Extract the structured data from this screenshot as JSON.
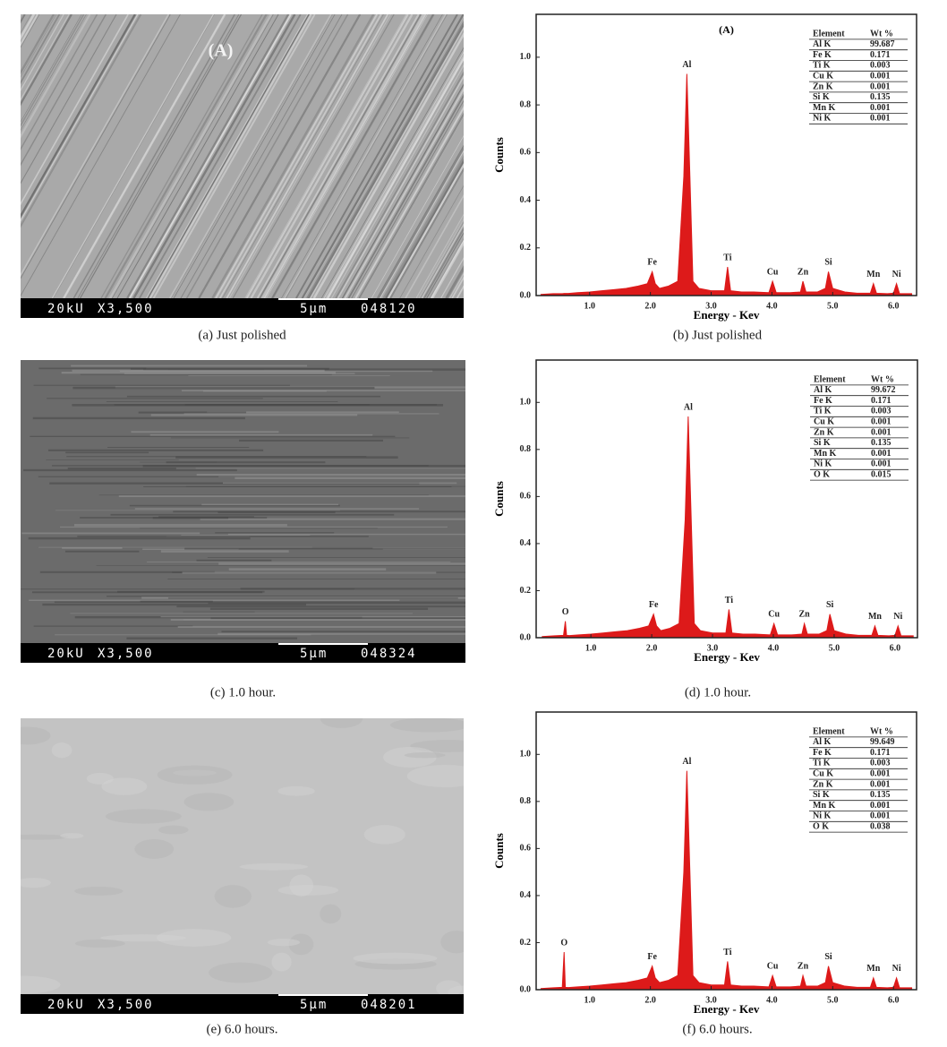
{
  "images": [
    {
      "label": "(A)",
      "info": [
        "20kU",
        "X3,500",
        "5μm",
        "048120"
      ],
      "caption": "(a) Just polished"
    },
    {
      "info": [
        "20kU",
        "X3,500",
        "5μm",
        "048324"
      ],
      "caption": "(c) 1.0 hour."
    },
    {
      "info": [
        "20kU",
        "X3,500",
        "5μm",
        "048201"
      ],
      "caption": "(e) 6.0 hours."
    }
  ],
  "chart_data": [
    {
      "type": "area",
      "title": "(A)",
      "caption": "(b) Just polished",
      "x_label": "Energy - Kev",
      "y_label": "Counts",
      "color": "#dd1a1a",
      "xlim": [
        0.12,
        6.38
      ],
      "ylim": [
        0,
        1.18
      ],
      "xticks": [
        {
          "value": 1,
          "label": "1.0"
        },
        {
          "value": 2,
          "label": "2.0"
        },
        {
          "value": 3,
          "label": "3.0"
        },
        {
          "value": 4,
          "label": "4.0"
        },
        {
          "value": 5,
          "label": "5.0"
        },
        {
          "value": 6,
          "label": "6.0"
        }
      ],
      "yticks": [
        {
          "value": 0,
          "label": "0.0"
        },
        0.2,
        0.4,
        0.6,
        0.8,
        {
          "value": 1,
          "label": "1.0"
        }
      ],
      "x": [
        0.2,
        0.4,
        0.55,
        0.58,
        0.6,
        0.65,
        0.8,
        1.0,
        1.2,
        1.4,
        1.6,
        1.8,
        1.95,
        2.03,
        2.08,
        2.15,
        2.3,
        2.45,
        2.55,
        2.6,
        2.65,
        2.7,
        2.8,
        3.0,
        3.22,
        3.27,
        3.32,
        3.5,
        3.7,
        3.95,
        4.01,
        4.07,
        4.3,
        4.47,
        4.51,
        4.56,
        4.75,
        4.88,
        4.93,
        5.0,
        5.2,
        5.4,
        5.62,
        5.67,
        5.72,
        5.9,
        6.0,
        6.05,
        6.1,
        6.3
      ],
      "values": [
        0.005,
        0.008,
        0.008,
        0.009,
        0.009,
        0.009,
        0.012,
        0.015,
        0.02,
        0.025,
        0.03,
        0.04,
        0.05,
        0.1,
        0.05,
        0.03,
        0.04,
        0.06,
        0.5,
        0.93,
        0.5,
        0.06,
        0.03,
        0.02,
        0.02,
        0.12,
        0.02,
        0.015,
        0.015,
        0.012,
        0.06,
        0.012,
        0.012,
        0.015,
        0.06,
        0.015,
        0.015,
        0.03,
        0.1,
        0.03,
        0.015,
        0.01,
        0.01,
        0.05,
        0.01,
        0.008,
        0.01,
        0.05,
        0.008,
        0.008
      ],
      "annotations": [
        {
          "text": "Fe",
          "x": 2.03,
          "y": 0.1
        },
        {
          "text": "Al",
          "x": 2.6,
          "y": 0.93
        },
        {
          "text": "Ti",
          "x": 3.27,
          "y": 0.12
        },
        {
          "text": "Cu",
          "x": 4.01,
          "y": 0.06
        },
        {
          "text": "Zn",
          "x": 4.51,
          "y": 0.06
        },
        {
          "text": "Si",
          "x": 4.93,
          "y": 0.1
        },
        {
          "text": "Mn",
          "x": 5.67,
          "y": 0.05
        },
        {
          "text": "Ni",
          "x": 6.05,
          "y": 0.05
        }
      ],
      "table": {
        "header": [
          "Element",
          "Wt %"
        ],
        "rows": [
          [
            "Al K",
            99.687
          ],
          [
            "Fe K",
            0.171
          ],
          [
            "Ti K",
            0.003
          ],
          [
            "Cu K",
            0.001
          ],
          [
            "Zn K",
            0.001
          ],
          [
            "Si K",
            0.135
          ],
          [
            "Mn K",
            0.001
          ],
          [
            "Ni K",
            0.001
          ]
        ]
      }
    },
    {
      "type": "area",
      "caption": "(d) 1.0 hour.",
      "x_label": "Energy - Kev",
      "y_label": "Counts",
      "color": "#dd1a1a",
      "xlim": [
        0.1,
        6.37
      ],
      "ylim": [
        0,
        1.18
      ],
      "xticks": [
        {
          "value": 1,
          "label": "1.0"
        },
        {
          "value": 2,
          "label": "2.0"
        },
        {
          "value": 3,
          "label": "3.0"
        },
        {
          "value": 4,
          "label": "4.0"
        },
        {
          "value": 5,
          "label": "5.0"
        },
        {
          "value": 6,
          "label": "6.0"
        }
      ],
      "yticks": [
        {
          "value": 0,
          "label": "0.0"
        },
        0.2,
        0.4,
        0.6,
        0.8,
        {
          "value": 1,
          "label": "1.0"
        }
      ],
      "x": [
        0.2,
        0.4,
        0.55,
        0.58,
        0.6,
        0.65,
        0.8,
        1.0,
        1.2,
        1.4,
        1.6,
        1.8,
        1.95,
        2.03,
        2.08,
        2.15,
        2.3,
        2.45,
        2.55,
        2.6,
        2.65,
        2.7,
        2.8,
        3.0,
        3.22,
        3.27,
        3.32,
        3.5,
        3.7,
        3.95,
        4.01,
        4.07,
        4.3,
        4.47,
        4.51,
        4.56,
        4.75,
        4.88,
        4.93,
        5.0,
        5.2,
        5.4,
        5.62,
        5.67,
        5.72,
        5.9,
        6.0,
        6.05,
        6.1,
        6.3
      ],
      "values": [
        0.005,
        0.008,
        0.01,
        0.07,
        0.01,
        0.009,
        0.012,
        0.015,
        0.02,
        0.025,
        0.03,
        0.04,
        0.05,
        0.1,
        0.05,
        0.03,
        0.04,
        0.06,
        0.5,
        0.94,
        0.5,
        0.06,
        0.03,
        0.02,
        0.02,
        0.12,
        0.02,
        0.015,
        0.015,
        0.012,
        0.06,
        0.012,
        0.012,
        0.015,
        0.06,
        0.015,
        0.015,
        0.03,
        0.1,
        0.03,
        0.015,
        0.01,
        0.01,
        0.05,
        0.01,
        0.008,
        0.01,
        0.05,
        0.008,
        0.008
      ],
      "annotations": [
        {
          "text": "O",
          "x": 0.58,
          "y": 0.07
        },
        {
          "text": "Fe",
          "x": 2.03,
          "y": 0.1
        },
        {
          "text": "Al",
          "x": 2.6,
          "y": 0.94
        },
        {
          "text": "Ti",
          "x": 3.27,
          "y": 0.12
        },
        {
          "text": "Cu",
          "x": 4.01,
          "y": 0.06
        },
        {
          "text": "Zn",
          "x": 4.51,
          "y": 0.06
        },
        {
          "text": "Si",
          "x": 4.93,
          "y": 0.1
        },
        {
          "text": "Mn",
          "x": 5.67,
          "y": 0.05
        },
        {
          "text": "Ni",
          "x": 6.05,
          "y": 0.05
        }
      ],
      "table": {
        "header": [
          "Element",
          "Wt %"
        ],
        "rows": [
          [
            "Al K",
            99.672
          ],
          [
            "Fe K",
            0.171
          ],
          [
            "Ti K",
            0.003
          ],
          [
            "Cu K",
            0.001
          ],
          [
            "Zn K",
            0.001
          ],
          [
            "Si K",
            0.135
          ],
          [
            "Mn K",
            0.001
          ],
          [
            "Ni K",
            0.001
          ],
          [
            "O K",
            0.015
          ]
        ]
      }
    },
    {
      "type": "area",
      "caption": "(f) 6.0 hours.",
      "x_label": "Energy - Kev",
      "y_label": "Counts",
      "color": "#dd1a1a",
      "xlim": [
        0.12,
        6.38
      ],
      "ylim": [
        0,
        1.18
      ],
      "xticks": [
        {
          "value": 1,
          "label": "1.0"
        },
        {
          "value": 2,
          "label": "2.0"
        },
        {
          "value": 3,
          "label": "3.0"
        },
        {
          "value": 4,
          "label": "4.0"
        },
        {
          "value": 5,
          "label": "5.0"
        },
        {
          "value": 6,
          "label": "6.0"
        }
      ],
      "yticks": [
        {
          "value": 0,
          "label": "0.0"
        },
        0.2,
        0.4,
        0.6,
        0.8,
        {
          "value": 1,
          "label": "1.0"
        }
      ],
      "x": [
        0.2,
        0.4,
        0.55,
        0.58,
        0.6,
        0.65,
        0.8,
        1.0,
        1.2,
        1.4,
        1.6,
        1.8,
        1.95,
        2.03,
        2.08,
        2.15,
        2.3,
        2.45,
        2.55,
        2.6,
        2.65,
        2.7,
        2.8,
        3.0,
        3.22,
        3.27,
        3.32,
        3.5,
        3.7,
        3.95,
        4.01,
        4.07,
        4.3,
        4.47,
        4.51,
        4.56,
        4.75,
        4.88,
        4.93,
        5.0,
        5.2,
        5.4,
        5.62,
        5.67,
        5.72,
        5.9,
        6.0,
        6.05,
        6.1,
        6.3
      ],
      "values": [
        0.005,
        0.008,
        0.01,
        0.16,
        0.01,
        0.009,
        0.012,
        0.015,
        0.02,
        0.025,
        0.03,
        0.04,
        0.05,
        0.1,
        0.05,
        0.03,
        0.04,
        0.06,
        0.5,
        0.93,
        0.5,
        0.06,
        0.03,
        0.02,
        0.02,
        0.12,
        0.02,
        0.015,
        0.015,
        0.012,
        0.06,
        0.012,
        0.012,
        0.015,
        0.06,
        0.015,
        0.015,
        0.03,
        0.1,
        0.03,
        0.015,
        0.01,
        0.01,
        0.05,
        0.01,
        0.008,
        0.01,
        0.05,
        0.008,
        0.008
      ],
      "annotations": [
        {
          "text": "O",
          "x": 0.58,
          "y": 0.16
        },
        {
          "text": "Fe",
          "x": 2.03,
          "y": 0.1
        },
        {
          "text": "Al",
          "x": 2.6,
          "y": 0.93
        },
        {
          "text": "Ti",
          "x": 3.27,
          "y": 0.12
        },
        {
          "text": "Cu",
          "x": 4.01,
          "y": 0.06
        },
        {
          "text": "Zn",
          "x": 4.51,
          "y": 0.06
        },
        {
          "text": "Si",
          "x": 4.93,
          "y": 0.1
        },
        {
          "text": "Mn",
          "x": 5.67,
          "y": 0.05
        },
        {
          "text": "Ni",
          "x": 6.05,
          "y": 0.05
        }
      ],
      "table": {
        "header": [
          "Element",
          "Wt %"
        ],
        "rows": [
          [
            "Al K",
            99.649
          ],
          [
            "Fe K",
            0.171
          ],
          [
            "Ti K",
            0.003
          ],
          [
            "Cu K",
            0.001
          ],
          [
            "Zn K",
            0.001
          ],
          [
            "Si K",
            0.135
          ],
          [
            "Mn K",
            0.001
          ],
          [
            "Ni K",
            0.001
          ],
          [
            "O K",
            0.038
          ]
        ]
      }
    }
  ]
}
